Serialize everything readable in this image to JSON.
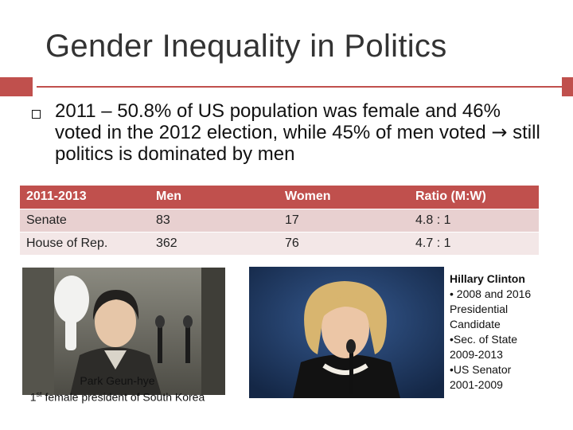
{
  "slide": {
    "title": "Gender Inequality in Politics",
    "bullet": {
      "part1": "2011 – 50.8% of US population was female and 46% voted in the 2012 election, while 45% of men voted ",
      "arrow": "→",
      "part2": " still politics is dominated by men"
    }
  },
  "table": {
    "headers": [
      "2011-2013",
      "Men",
      "Women",
      "Ratio (M:W)"
    ],
    "rows": [
      [
        "Senate",
        "83",
        "17",
        "4.8 : 1"
      ],
      [
        "House of Rep.",
        "362",
        "76",
        "4.7 : 1"
      ]
    ]
  },
  "park": {
    "name": "Park Geun-hye",
    "ordinal": "1",
    "ordinal_suffix": "st",
    "caption_rest": " female president of South Korea"
  },
  "clinton": {
    "name": "Hillary Clinton",
    "lines": [
      "• 2008 and 2016",
      "Presidential",
      "Candidate",
      "•Sec. of State",
      "2009-2013",
      "•US Senator",
      "2001-2009"
    ]
  },
  "colors": {
    "accent": "#c0504d",
    "row_dark": "#e8d0d0",
    "row_light": "#f3e7e7"
  }
}
